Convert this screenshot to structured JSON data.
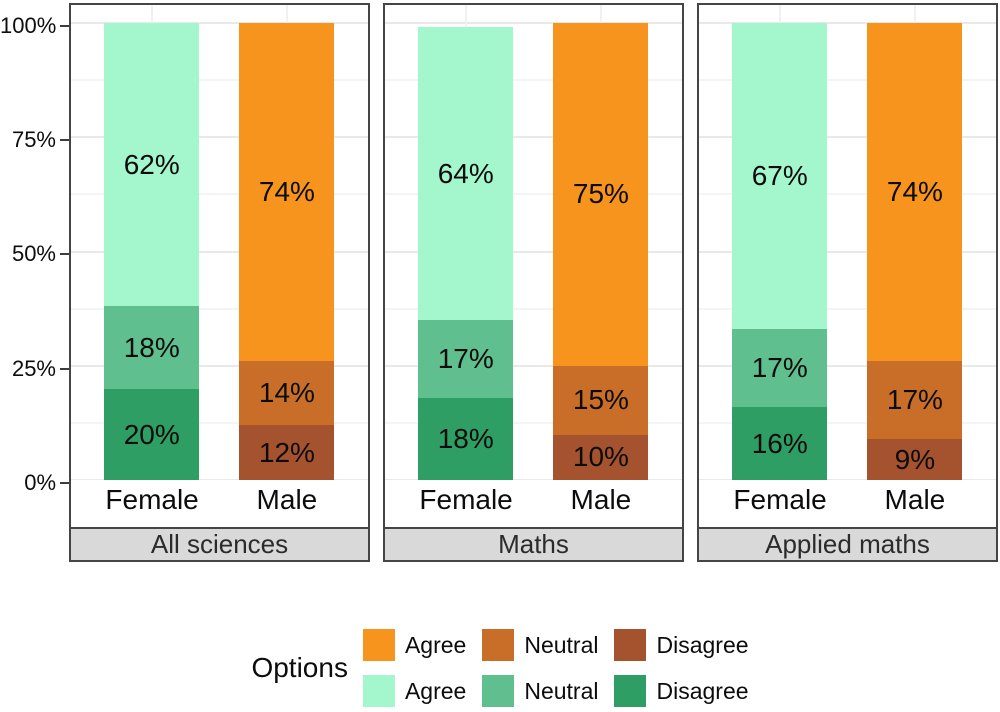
{
  "chart_data": {
    "type": "bar",
    "subtype": "stacked-percent",
    "title": "",
    "x_categories": [
      "Female",
      "Male"
    ],
    "y_axis": {
      "range": [
        0,
        100
      ],
      "ticks": [
        0,
        25,
        50,
        75,
        100
      ],
      "tick_labels": [
        "0%",
        "25%",
        "50%",
        "75%",
        "100%"
      ],
      "minor_ticks": [
        12.5,
        37.5,
        62.5,
        87.5
      ],
      "grid": true
    },
    "segment_order_bottom_to_top": [
      "Disagree",
      "Neutral",
      "Agree"
    ],
    "palettes": {
      "green": {
        "Agree": "#A4F6CD",
        "Neutral": "#5FBF8E",
        "Disagree": "#2F9E64"
      },
      "orange": {
        "Agree": "#F7941E",
        "Neutral": "#C96E28",
        "Disagree": "#A4532E"
      }
    },
    "facets": [
      {
        "label": "All sciences",
        "bars": [
          {
            "category": "Female",
            "palette": "green",
            "segments": [
              {
                "option": "Disagree",
                "value": 20
              },
              {
                "option": "Neutral",
                "value": 18
              },
              {
                "option": "Agree",
                "value": 62
              }
            ]
          },
          {
            "category": "Male",
            "palette": "orange",
            "segments": [
              {
                "option": "Disagree",
                "value": 12
              },
              {
                "option": "Neutral",
                "value": 14
              },
              {
                "option": "Agree",
                "value": 74
              }
            ]
          }
        ]
      },
      {
        "label": "Maths",
        "bars": [
          {
            "category": "Female",
            "palette": "green",
            "segments": [
              {
                "option": "Disagree",
                "value": 18
              },
              {
                "option": "Neutral",
                "value": 17
              },
              {
                "option": "Agree",
                "value": 64
              }
            ]
          },
          {
            "category": "Male",
            "palette": "orange",
            "segments": [
              {
                "option": "Disagree",
                "value": 10
              },
              {
                "option": "Neutral",
                "value": 15
              },
              {
                "option": "Agree",
                "value": 75
              }
            ]
          }
        ]
      },
      {
        "label": "Applied maths",
        "bars": [
          {
            "category": "Female",
            "palette": "green",
            "segments": [
              {
                "option": "Disagree",
                "value": 16
              },
              {
                "option": "Neutral",
                "value": 17
              },
              {
                "option": "Agree",
                "value": 67
              }
            ]
          },
          {
            "category": "Male",
            "palette": "orange",
            "segments": [
              {
                "option": "Disagree",
                "value": 9
              },
              {
                "option": "Neutral",
                "value": 17
              },
              {
                "option": "Agree",
                "value": 74
              }
            ]
          }
        ]
      }
    ],
    "legend": {
      "title": "Options",
      "rows": [
        [
          {
            "label": "Agree",
            "color": "#F7941E"
          },
          {
            "label": "Neutral",
            "color": "#C96E28"
          },
          {
            "label": "Disagree",
            "color": "#A4532E"
          }
        ],
        [
          {
            "label": "Agree",
            "color": "#A4F6CD"
          },
          {
            "label": "Neutral",
            "color": "#5FBF8E"
          },
          {
            "label": "Disagree",
            "color": "#2F9E64"
          }
        ]
      ]
    }
  }
}
